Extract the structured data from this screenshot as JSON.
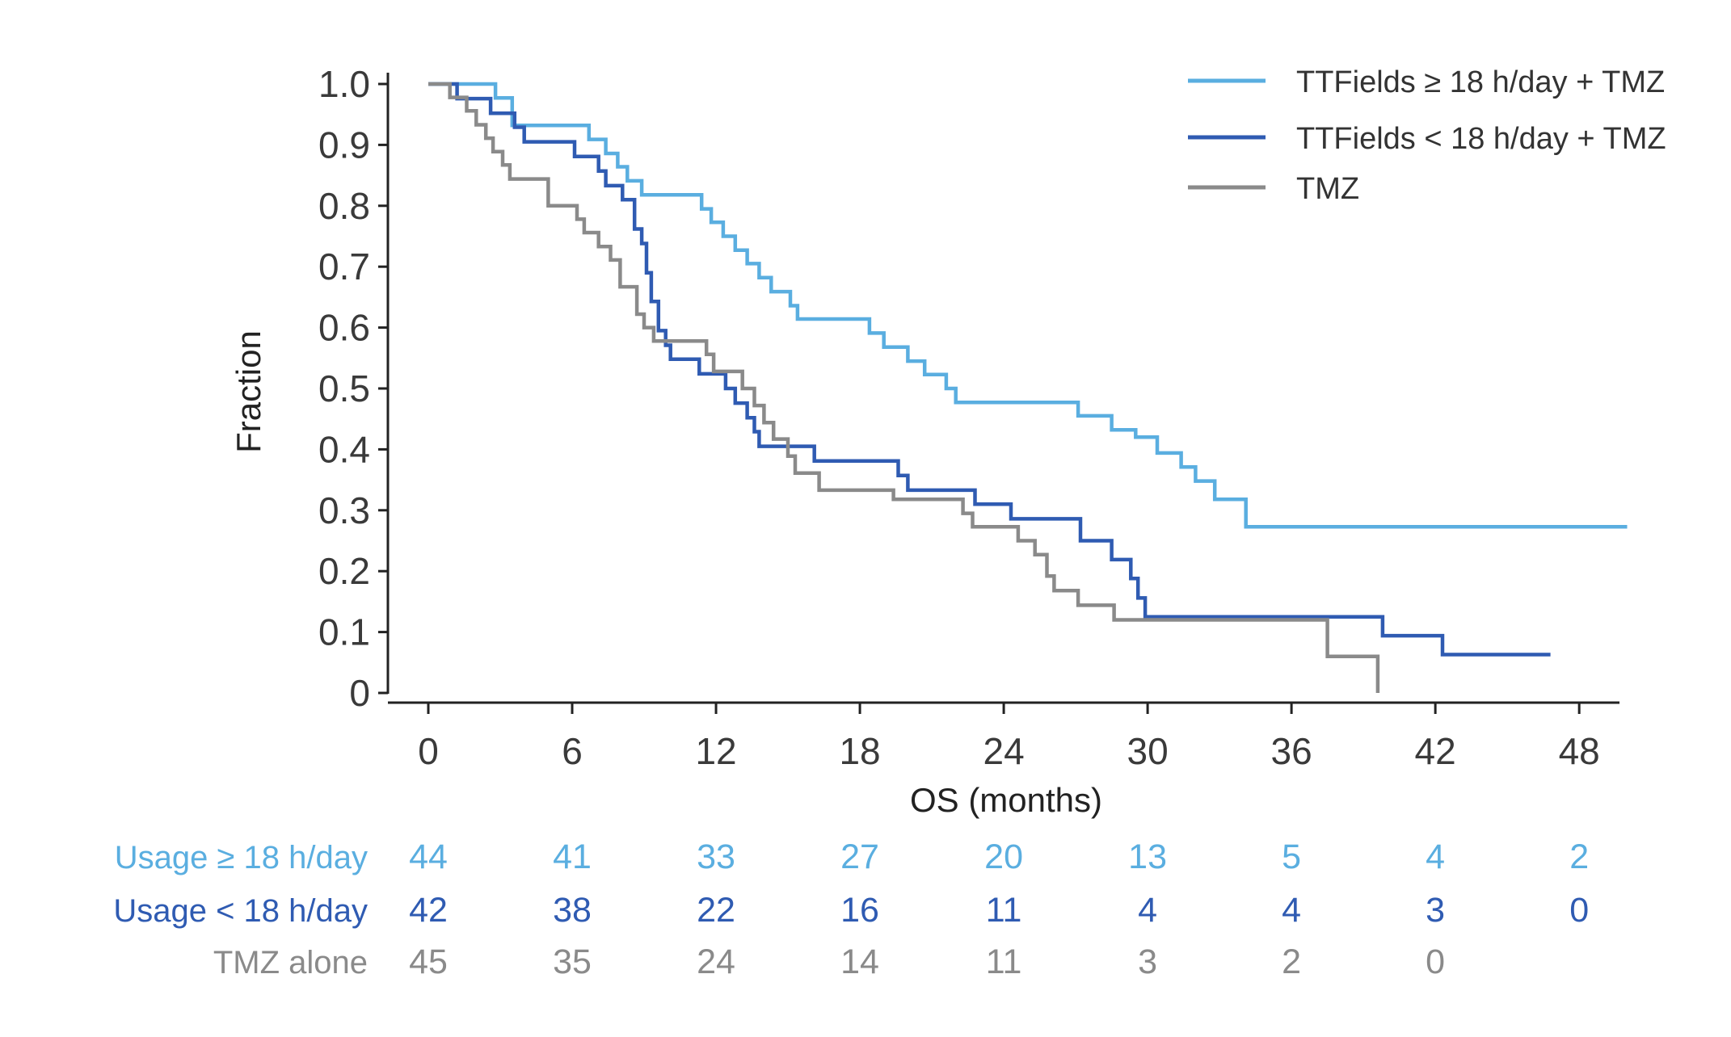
{
  "chart_data": {
    "type": "line",
    "subtype": "kaplan-meier step",
    "title": "",
    "xlabel": "OS (months)",
    "ylabel": "Fraction",
    "xlim": [
      0,
      50
    ],
    "ylim": [
      0,
      1.0
    ],
    "x_ticks": [
      0,
      6,
      12,
      18,
      24,
      30,
      36,
      42,
      48
    ],
    "y_ticks": [
      0,
      0.1,
      0.2,
      0.3,
      0.4,
      0.5,
      0.6,
      0.7,
      0.8,
      0.9,
      1.0
    ],
    "y_tick_labels": [
      "0",
      "0.1",
      "0.2",
      "0.3",
      "0.4",
      "0.5",
      "0.6",
      "0.7",
      "0.8",
      "0.9",
      "1.0"
    ],
    "grid": false,
    "legend_position": "top-right",
    "series": [
      {
        "name": "TTFields ≥ 18 h/day + TMZ",
        "color": "#5aaee0",
        "points": [
          [
            0,
            1.0
          ],
          [
            2.8,
            1.0
          ],
          [
            2.8,
            0.977
          ],
          [
            3.5,
            0.977
          ],
          [
            3.5,
            0.932
          ],
          [
            6.7,
            0.932
          ],
          [
            6.7,
            0.909
          ],
          [
            7.4,
            0.909
          ],
          [
            7.4,
            0.886
          ],
          [
            7.9,
            0.886
          ],
          [
            7.9,
            0.864
          ],
          [
            8.3,
            0.864
          ],
          [
            8.3,
            0.841
          ],
          [
            8.9,
            0.841
          ],
          [
            8.9,
            0.818
          ],
          [
            11.4,
            0.818
          ],
          [
            11.4,
            0.795
          ],
          [
            11.8,
            0.795
          ],
          [
            11.8,
            0.773
          ],
          [
            12.3,
            0.773
          ],
          [
            12.3,
            0.75
          ],
          [
            12.8,
            0.75
          ],
          [
            12.8,
            0.727
          ],
          [
            13.3,
            0.727
          ],
          [
            13.3,
            0.705
          ],
          [
            13.8,
            0.705
          ],
          [
            13.8,
            0.682
          ],
          [
            14.3,
            0.682
          ],
          [
            14.3,
            0.659
          ],
          [
            15.1,
            0.659
          ],
          [
            15.1,
            0.636
          ],
          [
            15.4,
            0.636
          ],
          [
            15.4,
            0.614
          ],
          [
            18.4,
            0.614
          ],
          [
            18.4,
            0.591
          ],
          [
            19.0,
            0.591
          ],
          [
            19.0,
            0.568
          ],
          [
            20.0,
            0.568
          ],
          [
            20.0,
            0.545
          ],
          [
            20.7,
            0.545
          ],
          [
            20.7,
            0.523
          ],
          [
            21.6,
            0.523
          ],
          [
            21.6,
            0.5
          ],
          [
            22.0,
            0.5
          ],
          [
            22.0,
            0.477
          ],
          [
            27.1,
            0.477
          ],
          [
            27.1,
            0.455
          ],
          [
            28.5,
            0.455
          ],
          [
            28.5,
            0.432
          ],
          [
            29.5,
            0.432
          ],
          [
            29.5,
            0.42
          ],
          [
            30.4,
            0.42
          ],
          [
            30.4,
            0.394
          ],
          [
            31.4,
            0.394
          ],
          [
            31.4,
            0.371
          ],
          [
            32.0,
            0.371
          ],
          [
            32.0,
            0.348
          ],
          [
            32.8,
            0.348
          ],
          [
            32.8,
            0.318
          ],
          [
            34.1,
            0.318
          ],
          [
            34.1,
            0.273
          ],
          [
            50,
            0.273
          ]
        ]
      },
      {
        "name": "TTFields < 18 h/day + TMZ",
        "color": "#2f5bb2",
        "points": [
          [
            0,
            1.0
          ],
          [
            1.2,
            1.0
          ],
          [
            1.2,
            0.976
          ],
          [
            2.6,
            0.976
          ],
          [
            2.6,
            0.952
          ],
          [
            3.6,
            0.952
          ],
          [
            3.6,
            0.929
          ],
          [
            4.0,
            0.929
          ],
          [
            4.0,
            0.905
          ],
          [
            6.1,
            0.905
          ],
          [
            6.1,
            0.881
          ],
          [
            7.1,
            0.881
          ],
          [
            7.1,
            0.857
          ],
          [
            7.4,
            0.857
          ],
          [
            7.4,
            0.833
          ],
          [
            8.1,
            0.833
          ],
          [
            8.1,
            0.81
          ],
          [
            8.6,
            0.81
          ],
          [
            8.6,
            0.762
          ],
          [
            8.9,
            0.762
          ],
          [
            8.9,
            0.738
          ],
          [
            9.1,
            0.738
          ],
          [
            9.1,
            0.69
          ],
          [
            9.3,
            0.69
          ],
          [
            9.3,
            0.643
          ],
          [
            9.6,
            0.643
          ],
          [
            9.6,
            0.595
          ],
          [
            9.9,
            0.595
          ],
          [
            9.9,
            0.571
          ],
          [
            10.1,
            0.571
          ],
          [
            10.1,
            0.548
          ],
          [
            11.3,
            0.548
          ],
          [
            11.3,
            0.524
          ],
          [
            12.4,
            0.524
          ],
          [
            12.4,
            0.5
          ],
          [
            12.8,
            0.5
          ],
          [
            12.8,
            0.476
          ],
          [
            13.3,
            0.476
          ],
          [
            13.3,
            0.452
          ],
          [
            13.6,
            0.452
          ],
          [
            13.6,
            0.429
          ],
          [
            13.8,
            0.429
          ],
          [
            13.8,
            0.405
          ],
          [
            16.1,
            0.405
          ],
          [
            16.1,
            0.381
          ],
          [
            19.6,
            0.381
          ],
          [
            19.6,
            0.357
          ],
          [
            20.0,
            0.357
          ],
          [
            20.0,
            0.333
          ],
          [
            22.8,
            0.333
          ],
          [
            22.8,
            0.31
          ],
          [
            24.3,
            0.31
          ],
          [
            24.3,
            0.286
          ],
          [
            27.2,
            0.286
          ],
          [
            27.2,
            0.25
          ],
          [
            28.5,
            0.25
          ],
          [
            28.5,
            0.219
          ],
          [
            29.3,
            0.219
          ],
          [
            29.3,
            0.188
          ],
          [
            29.6,
            0.188
          ],
          [
            29.6,
            0.156
          ],
          [
            29.9,
            0.156
          ],
          [
            29.9,
            0.125
          ],
          [
            39.8,
            0.125
          ],
          [
            39.8,
            0.094
          ],
          [
            42.3,
            0.094
          ],
          [
            42.3,
            0.063
          ],
          [
            46.8,
            0.063
          ]
        ]
      },
      {
        "name": "TMZ",
        "color": "#8a8a8a",
        "points": [
          [
            0,
            1.0
          ],
          [
            0.9,
            1.0
          ],
          [
            0.9,
            0.978
          ],
          [
            1.6,
            0.978
          ],
          [
            1.6,
            0.956
          ],
          [
            2.0,
            0.956
          ],
          [
            2.0,
            0.933
          ],
          [
            2.4,
            0.933
          ],
          [
            2.4,
            0.911
          ],
          [
            2.7,
            0.911
          ],
          [
            2.7,
            0.889
          ],
          [
            3.1,
            0.889
          ],
          [
            3.1,
            0.867
          ],
          [
            3.4,
            0.867
          ],
          [
            3.4,
            0.844
          ],
          [
            5.0,
            0.844
          ],
          [
            5.0,
            0.8
          ],
          [
            6.2,
            0.8
          ],
          [
            6.2,
            0.778
          ],
          [
            6.5,
            0.778
          ],
          [
            6.5,
            0.756
          ],
          [
            7.1,
            0.756
          ],
          [
            7.1,
            0.733
          ],
          [
            7.6,
            0.733
          ],
          [
            7.6,
            0.711
          ],
          [
            8.0,
            0.711
          ],
          [
            8.0,
            0.667
          ],
          [
            8.7,
            0.667
          ],
          [
            8.7,
            0.622
          ],
          [
            9.0,
            0.622
          ],
          [
            9.0,
            0.6
          ],
          [
            9.4,
            0.6
          ],
          [
            9.4,
            0.578
          ],
          [
            11.6,
            0.578
          ],
          [
            11.6,
            0.556
          ],
          [
            11.9,
            0.556
          ],
          [
            11.9,
            0.528
          ],
          [
            13.1,
            0.528
          ],
          [
            13.1,
            0.5
          ],
          [
            13.6,
            0.5
          ],
          [
            13.6,
            0.472
          ],
          [
            14.0,
            0.472
          ],
          [
            14.0,
            0.444
          ],
          [
            14.4,
            0.444
          ],
          [
            14.4,
            0.417
          ],
          [
            15.0,
            0.417
          ],
          [
            15.0,
            0.389
          ],
          [
            15.3,
            0.389
          ],
          [
            15.3,
            0.361
          ],
          [
            16.3,
            0.361
          ],
          [
            16.3,
            0.333
          ],
          [
            19.4,
            0.333
          ],
          [
            19.4,
            0.318
          ],
          [
            22.3,
            0.318
          ],
          [
            22.3,
            0.295
          ],
          [
            22.7,
            0.295
          ],
          [
            22.7,
            0.273
          ],
          [
            24.6,
            0.273
          ],
          [
            24.6,
            0.25
          ],
          [
            25.3,
            0.25
          ],
          [
            25.3,
            0.227
          ],
          [
            25.8,
            0.227
          ],
          [
            25.8,
            0.192
          ],
          [
            26.1,
            0.192
          ],
          [
            26.1,
            0.168
          ],
          [
            27.1,
            0.168
          ],
          [
            27.1,
            0.144
          ],
          [
            28.6,
            0.144
          ],
          [
            28.6,
            0.12
          ],
          [
            37.5,
            0.12
          ],
          [
            37.5,
            0.06
          ],
          [
            39.6,
            0.06
          ],
          [
            39.6,
            0.0
          ]
        ]
      }
    ],
    "risk_table": {
      "x": [
        0,
        6,
        12,
        18,
        24,
        30,
        36,
        42,
        48
      ],
      "rows": [
        {
          "label": "Usage ≥ 18 h/day",
          "color": "#5aaee0",
          "values": [
            "44",
            "41",
            "33",
            "27",
            "20",
            "13",
            "5",
            "4",
            "2"
          ]
        },
        {
          "label": "Usage < 18 h/day",
          "color": "#2f5bb2",
          "values": [
            "42",
            "38",
            "22",
            "16",
            "11",
            "4",
            "4",
            "3",
            "0"
          ]
        },
        {
          "label": "TMZ alone",
          "color": "#8a8a8a",
          "values": [
            "45",
            "35",
            "24",
            "14",
            "11",
            "3",
            "2",
            "0",
            ""
          ]
        }
      ]
    }
  }
}
